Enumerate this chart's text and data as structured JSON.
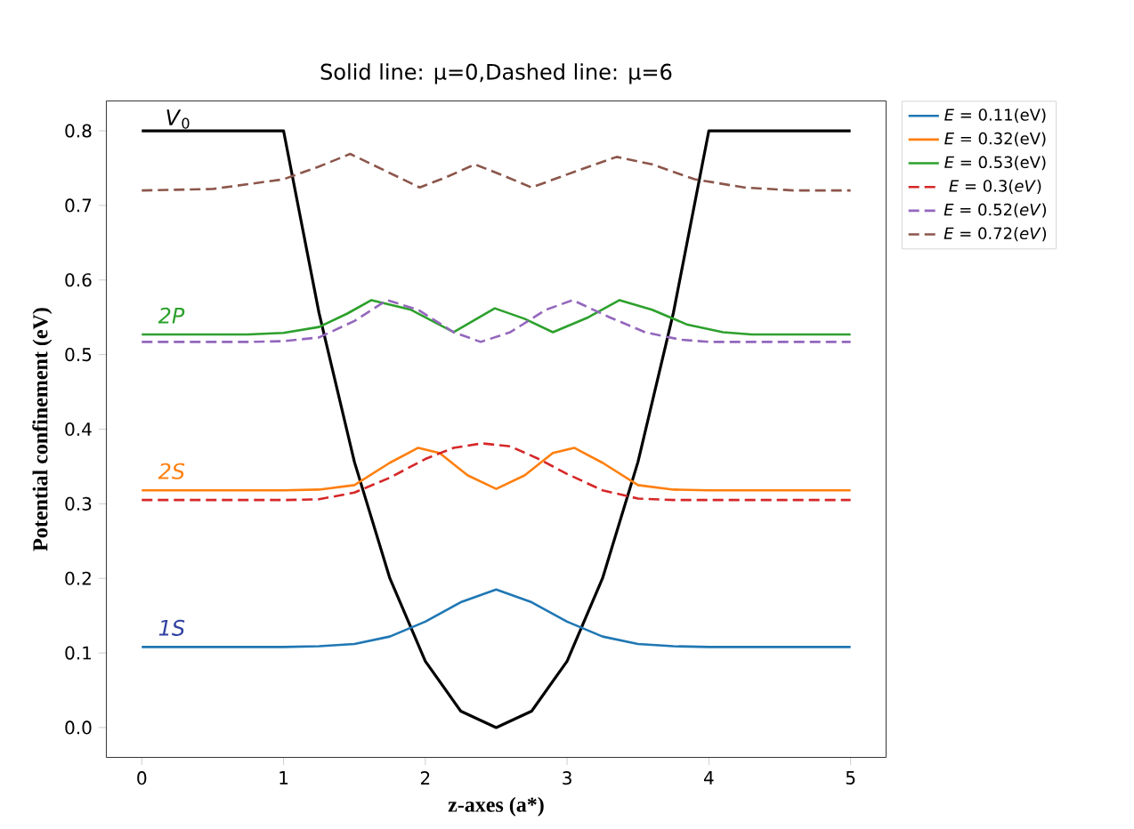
{
  "chart_data": {
    "type": "line",
    "title": "Solid line: μ=0,Dashed line: μ=6",
    "xlabel": "z-axes (a*)",
    "ylabel": "Potential confinement (eV)",
    "xlim": [
      -0.25,
      5.25
    ],
    "ylim": [
      -0.04,
      0.84
    ],
    "xticks": [
      0,
      1,
      2,
      3,
      4,
      5
    ],
    "yticks": [
      {
        "value": 0,
        "label": "0.0"
      },
      0.1,
      0.2,
      0.3,
      0.4,
      0.5,
      0.6,
      0.7,
      0.8
    ],
    "grid": false,
    "legend": "right",
    "marker": "none",
    "series": [
      {
        "name": "*V*$_{0}$",
        "color": "#000000",
        "line_style": "solid",
        "x": [
          0,
          1,
          1.25,
          1.5,
          1.75,
          2,
          2.25,
          2.5,
          2.75,
          3,
          3.25,
          3.5,
          3.75,
          4,
          5
        ],
        "values": [
          0.8,
          0.8,
          0.556,
          0.356,
          0.2,
          0.089,
          0.022,
          0,
          0.022,
          0.089,
          0.2,
          0.356,
          0.556,
          0.8,
          0.8
        ]
      },
      {
        "name": "*E* = 0.11(eV)",
        "color": "#1f77b4",
        "line_style": "solid",
        "x": [
          0,
          0.5,
          1,
          1.25,
          1.5,
          1.75,
          2,
          2.25,
          2.5,
          2.75,
          3,
          3.25,
          3.5,
          3.75,
          4,
          4.5,
          5
        ],
        "values": [
          0.108,
          0.108,
          0.108,
          0.109,
          0.112,
          0.122,
          0.142,
          0.168,
          0.185,
          0.168,
          0.142,
          0.122,
          0.112,
          0.109,
          0.108,
          0.108,
          0.108
        ]
      },
      {
        "name": "*E* = 0.32(eV)",
        "color": "#ff7f0e",
        "line_style": "solid",
        "x": [
          0,
          1,
          1.25,
          1.5,
          1.75,
          1.95,
          2.1,
          2.3,
          2.5,
          2.7,
          2.9,
          3.05,
          3.25,
          3.5,
          3.75,
          4,
          5
        ],
        "values": [
          0.318,
          0.318,
          0.319,
          0.325,
          0.355,
          0.375,
          0.368,
          0.338,
          0.32,
          0.338,
          0.368,
          0.375,
          0.355,
          0.325,
          0.319,
          0.318,
          0.318
        ]
      },
      {
        "name": "*E* = 0.53(eV)",
        "color": "#2ca02c",
        "line_style": "solid",
        "x": [
          0,
          0.75,
          1,
          1.25,
          1.45,
          1.62,
          1.9,
          2.2,
          2.49,
          2.7,
          2.9,
          3.15,
          3.37,
          3.6,
          3.85,
          4.1,
          4.3,
          5
        ],
        "values": [
          0.527,
          0.527,
          0.529,
          0.537,
          0.555,
          0.573,
          0.56,
          0.53,
          0.562,
          0.548,
          0.53,
          0.55,
          0.573,
          0.56,
          0.54,
          0.53,
          0.527,
          0.527
        ]
      },
      {
        "name": "*E* = 0.3(*eV*)",
        "color": "#d62728",
        "line_style": "dashed",
        "x": [
          0,
          1,
          1.25,
          1.5,
          1.75,
          2,
          2.2,
          2.4,
          2.6,
          2.8,
          3,
          3.25,
          3.5,
          3.75,
          5
        ],
        "values": [
          0.305,
          0.305,
          0.306,
          0.315,
          0.335,
          0.36,
          0.375,
          0.381,
          0.377,
          0.36,
          0.34,
          0.318,
          0.307,
          0.305,
          0.305
        ]
      },
      {
        "name": "*E* = 0.52(*eV*)",
        "color": "#9467bd",
        "line_style": "dashed",
        "x": [
          0,
          0.75,
          1,
          1.25,
          1.5,
          1.73,
          1.95,
          2.2,
          2.39,
          2.6,
          2.85,
          3.04,
          3.3,
          3.55,
          3.8,
          4,
          5
        ],
        "values": [
          0.517,
          0.517,
          0.518,
          0.523,
          0.545,
          0.573,
          0.56,
          0.53,
          0.517,
          0.53,
          0.56,
          0.573,
          0.55,
          0.53,
          0.52,
          0.517,
          0.517
        ]
      },
      {
        "name": "*E* = 0.72(*eV*)",
        "color": "#8c564b",
        "line_style": "dashed",
        "x": [
          0,
          0.5,
          1,
          1.25,
          1.47,
          1.7,
          1.96,
          2.15,
          2.35,
          2.55,
          2.75,
          3.05,
          3.35,
          3.6,
          3.9,
          4.25,
          4.6,
          5
        ],
        "values": [
          0.72,
          0.722,
          0.735,
          0.752,
          0.769,
          0.748,
          0.724,
          0.738,
          0.755,
          0.74,
          0.724,
          0.745,
          0.765,
          0.755,
          0.735,
          0.724,
          0.72,
          0.72
        ]
      }
    ],
    "annotations": [
      "1S",
      "2S",
      "2P"
    ]
  }
}
